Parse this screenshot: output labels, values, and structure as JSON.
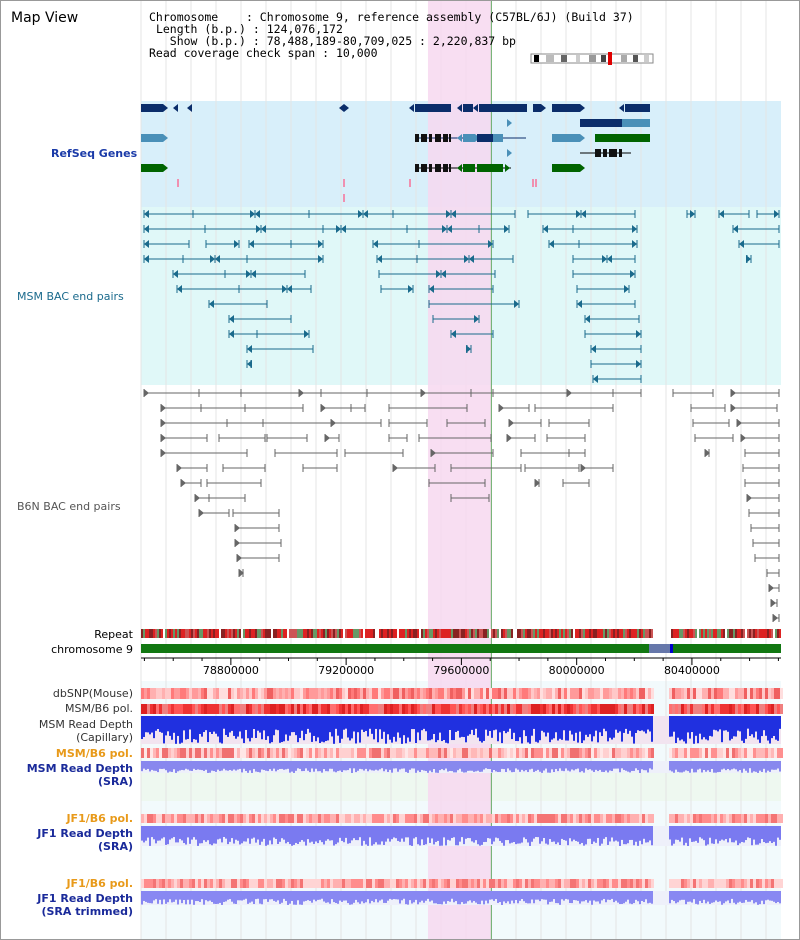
{
  "window": {
    "title": "Map View"
  },
  "info": {
    "chromosome_key": "Chromosome",
    "chromosome_value": "Chromosome 9, reference assembly (C57BL/6J) (Build 37)",
    "length_key": "Length (b.p.)",
    "length_value": "124,076,172",
    "show_key": "Show (b.p.)",
    "show_value": "78,488,189-80,709,025 : 2,220,837 bp",
    "coverage_key": "Read coverage check span",
    "coverage_value": "10,000"
  },
  "tracks": {
    "refseq": "RefSeq Genes",
    "msm_bac": "MSM BAC end pairs",
    "b6n_bac": "B6N BAC end pairs",
    "repeat": "Repeat",
    "chromosome": "chromosome 9",
    "dbsnp": "dbSNP(Mouse)",
    "msm_b6_pol": "MSM/B6 pol.",
    "msm_read_depth_cap_1": "MSM Read Depth",
    "msm_read_depth_cap_2": "(Capillary)",
    "msm_b6_pol_2": "MSM/B6 pol.",
    "msm_read_depth_sra_1": "MSM Read Depth",
    "msm_read_depth_sra_2": "(SRA)",
    "jf1_b6_pol": "JF1/B6 pol.",
    "jf1_read_depth_sra_1": "JF1 Read Depth",
    "jf1_read_depth_sra_2": "(SRA)",
    "jf1_b6_pol_2": "JF1/B6 pol.",
    "jf1_read_depth_trim_1": "JF1 Read Depth",
    "jf1_read_depth_trim_2": "(SRA trimmed)"
  },
  "axis": {
    "ticks": [
      "78800000",
      "79200000",
      "79600000",
      "80000000",
      "80400000"
    ],
    "tick_positions_bp": [
      78800000,
      79200000,
      79600000,
      80000000,
      80400000
    ]
  },
  "region": {
    "start_bp": 78488189,
    "end_bp": 80709025,
    "highlight_start_bp": 79484000,
    "highlight_end_bp": 79704000
  },
  "colors": {
    "refseq_band": "#d8effa",
    "msm_band": "#e0f8f8",
    "highlight": "#f7d8f0",
    "gene_navy": "#0b2d6a",
    "gene_teal": "#4a90b8",
    "gene_green": "#006400",
    "msm_pair": "#1a6a8c",
    "b6n_pair": "#666666",
    "depth_blue": "#2030e0",
    "depth_light": "#8080f0",
    "pol_red": "#ee3333",
    "pol_light": "#ffb8b8"
  }
}
